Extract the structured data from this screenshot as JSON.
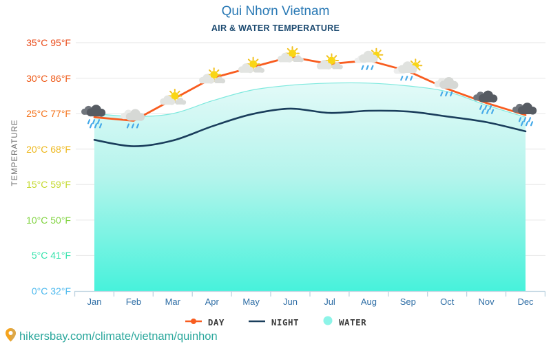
{
  "header": {
    "title": "Qui Nhơn Vietnam",
    "subtitle": "AIR & WATER TEMPERATURE"
  },
  "chart_data": {
    "type": "line",
    "title": "Qui Nhơn Vietnam",
    "subtitle": "AIR & WATER TEMPERATURE",
    "ylabel": "TEMPERATURE",
    "ylim": [
      0,
      35
    ],
    "grid": true,
    "legend_position": "bottom",
    "categories": [
      "Jan",
      "Feb",
      "Mar",
      "Apr",
      "May",
      "Jun",
      "Jul",
      "Aug",
      "Sep",
      "Oct",
      "Nov",
      "Dec"
    ],
    "y_ticks": [
      {
        "label": "35°C 95°F",
        "value": 35,
        "color": "#e94a19"
      },
      {
        "label": "30°C 86°F",
        "value": 30,
        "color": "#ee5917"
      },
      {
        "label": "25°C 77°F",
        "value": 25,
        "color": "#f4731b"
      },
      {
        "label": "20°C 68°F",
        "value": 20,
        "color": "#edb81e"
      },
      {
        "label": "15°C 59°F",
        "value": 15,
        "color": "#c4d92e"
      },
      {
        "label": "10°C 50°F",
        "value": 10,
        "color": "#82d442"
      },
      {
        "label": "5°C 41°F",
        "value": 5,
        "color": "#35e3ac"
      },
      {
        "label": "0°C 32°F",
        "value": 0,
        "color": "#4db9ee"
      }
    ],
    "series": [
      {
        "name": "DAY",
        "type": "line",
        "color": "#f85c1f",
        "values": [
          24.5,
          24,
          27,
          30,
          31.5,
          33,
          32,
          32.5,
          31,
          28.5,
          26.5,
          24.8
        ],
        "weather_icons": [
          "heavy-rain-icon",
          "rain-icon",
          "partly-sunny-icon",
          "partly-sunny-icon",
          "partly-sunny-icon",
          "partly-sunny-icon",
          "partly-sunny-icon",
          "sun-shower-icon",
          "sun-shower-icon",
          "rain-icon",
          "heavy-rain-icon",
          "heavy-rain-icon"
        ]
      },
      {
        "name": "NIGHT",
        "type": "line",
        "color": "#1a3e5c",
        "values": [
          21.3,
          20.4,
          21.2,
          23.2,
          24.9,
          25.7,
          25.1,
          25.4,
          25.3,
          24.6,
          23.8,
          22.5
        ]
      },
      {
        "name": "WATER",
        "type": "area",
        "color": "#47f2db",
        "values": [
          25,
          24.6,
          25,
          26.8,
          28.3,
          29,
          29.3,
          29.3,
          28.9,
          28.1,
          26.2,
          24.5
        ]
      }
    ],
    "water_gradient": {
      "top": "#e3faf8",
      "mid": "#b4f4ec",
      "bottom": "#47f2db"
    },
    "legend_marker_water_color": "#8df4e8"
  },
  "footer": {
    "url": "hikersbay.com/climate/vietnam/quinhon"
  }
}
